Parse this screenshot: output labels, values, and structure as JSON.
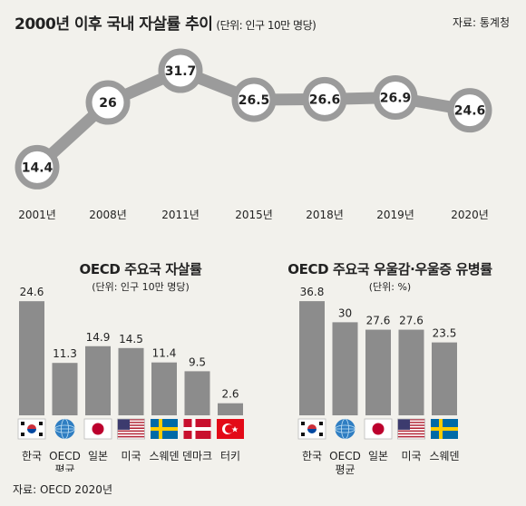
{
  "top_chart": {
    "title": "2000년 이후 국내 자살률 추이",
    "subtitle": "(단위: 인구 10만 명당)",
    "source": "자료: 통계청"
  },
  "left_chart": {
    "title": "OECD 주요국 자살률",
    "subtitle": "(단위: 인구 10만 명당)",
    "source": "자료: OECD 2020년"
  },
  "right_chart": {
    "title": "OECD 주요국 우울감·우울증 유병률",
    "subtitle": "(단위: %)"
  },
  "colors": {
    "line": "#9b9b9b",
    "bar": "#8c8c8c",
    "background": "#f2f1ec"
  },
  "chart_data": [
    {
      "type": "line",
      "title": "2000년 이후 국내 자살률 추이",
      "x": [
        "2001년",
        "2008년",
        "2011년",
        "2015년",
        "2018년",
        "2019년",
        "2020년"
      ],
      "values": [
        14.4,
        26,
        31.7,
        26.5,
        26.6,
        26.9,
        24.6
      ],
      "ylabel": "(단위: 인구 10만 명당)",
      "ylim": [
        13,
        33
      ],
      "grid": false
    },
    {
      "type": "bar",
      "title": "OECD 주요국 자살률",
      "categories": [
        "한국",
        "OECD\n평균",
        "일본",
        "미국",
        "스웨덴",
        "덴마크",
        "터키"
      ],
      "values": [
        24.6,
        11.3,
        14.9,
        14.5,
        11.4,
        9.5,
        2.6
      ],
      "flags": [
        "korea-flag",
        "oecd-globe",
        "japan-flag",
        "usa-flag",
        "sweden-flag",
        "denmark-flag",
        "turkey-flag"
      ],
      "ylim": [
        0,
        26
      ]
    },
    {
      "type": "bar",
      "title": "OECD 주요국 우울감·우울증 유병률",
      "categories": [
        "한국",
        "OECD\n평균",
        "일본",
        "미국",
        "스웨덴"
      ],
      "values": [
        36.8,
        30,
        27.6,
        27.6,
        23.5
      ],
      "flags": [
        "korea-flag",
        "oecd-globe",
        "japan-flag",
        "usa-flag",
        "sweden-flag"
      ],
      "ylim": [
        0,
        38
      ]
    }
  ]
}
